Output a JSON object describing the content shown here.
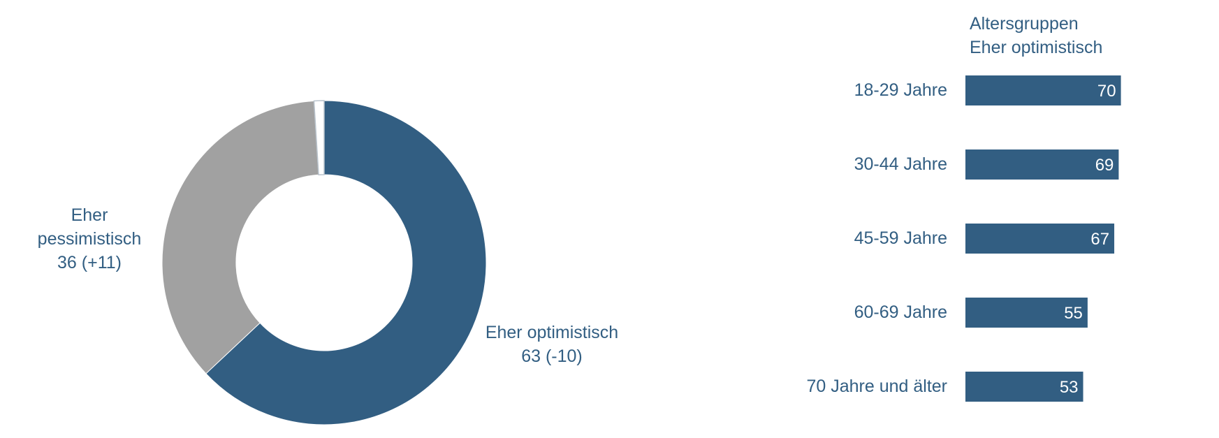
{
  "chart_data": [
    {
      "type": "pie",
      "donut": true,
      "slices": [
        {
          "label": "Eher optimistisch",
          "value": 63,
          "change": "(-10)",
          "color": "#325e82"
        },
        {
          "label": "Eher pessimistisch",
          "value": 36,
          "change": "(+11)",
          "color": "#a1a1a1"
        },
        {
          "label": "",
          "value": 1,
          "change": "",
          "color": "#ffffff"
        }
      ],
      "labels": {
        "optimistic": {
          "line1": "Eher optimistisch",
          "line2": "63 (-10)"
        },
        "pessimistic": {
          "line1": "Eher",
          "line2": "pessimistisch",
          "line3": "36 (+11)"
        }
      }
    },
    {
      "type": "bar",
      "orientation": "horizontal",
      "title_line1": "Altersgruppen",
      "title_line2": "Eher optimistisch",
      "categories": [
        "18-29 Jahre",
        "30-44 Jahre",
        "45-59 Jahre",
        "60-69 Jahre",
        "70 Jahre und älter"
      ],
      "values": [
        70,
        69,
        67,
        55,
        53
      ],
      "xlim": [
        0,
        100
      ],
      "bar_color": "#325e82",
      "label_color": "#ffffff",
      "category_color": "#325e82"
    }
  ],
  "colors": {
    "text": "#325e82"
  }
}
